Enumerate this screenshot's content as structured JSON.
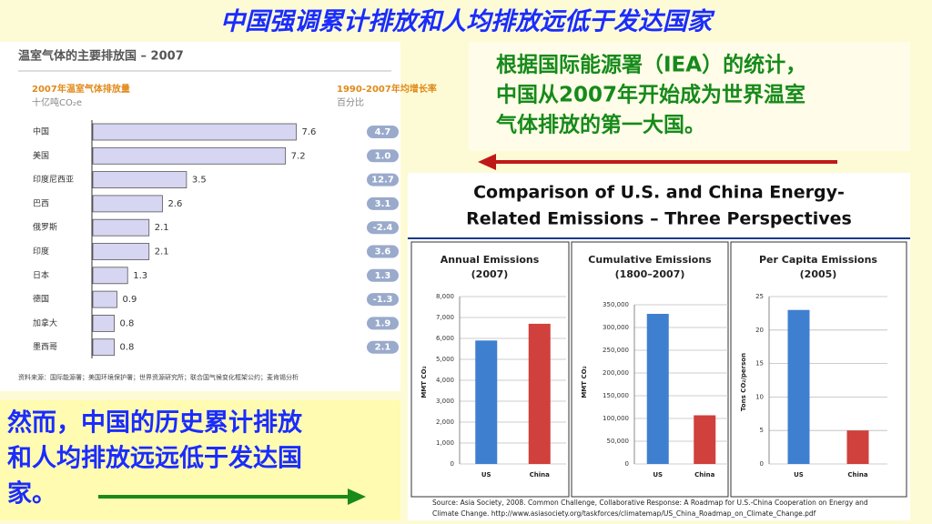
{
  "title": "中国强调累计排放和人均排放远低于发达国家",
  "callout_top": [
    "根据国际能源署（IEA）的统计，",
    "中国从2007年开始成为世界温室",
    "气体排放的第一大国。"
  ],
  "callout_bottom": [
    "然而，中国的历史累计排放",
    "和人均排放远远低于发达国",
    "家。"
  ],
  "comparison": {
    "heading": [
      "Comparison of U.S. and China Energy-",
      "Related Emissions – Three Perspectives"
    ],
    "source": [
      "Source: Asia Society, 2008. Common Challenge, Collaborative Response: A Roadmap for U.S.-China Cooperation on Energy and",
      "Climate Change. http://www.asiasociety.org/taskforces/climatemap/US_China_Roadmap_on_Climate_Change.pdf"
    ]
  },
  "chart_data": [
    {
      "type": "hbar",
      "title": "温室气体的主要排放国 – 2007",
      "subtitle": "2007年温室气体排放量",
      "unit": "十亿吨CO₂e",
      "growth_title": "1990-2007年均增长率",
      "growth_unit": "百分比",
      "categories": [
        "中国",
        "美国",
        "印度尼西亚",
        "巴西",
        "俄罗斯",
        "印度",
        "日本",
        "德国",
        "加拿大",
        "墨西哥"
      ],
      "values": [
        7.6,
        7.2,
        3.5,
        2.6,
        2.1,
        2.1,
        1.3,
        0.9,
        0.8,
        0.8
      ],
      "color": "#d6d6f2",
      "growth": {
        "values": [
          4.7,
          1,
          12.7,
          3.1,
          -2.4,
          3.6,
          1.3,
          -1.3,
          1.9,
          2.1
        ],
        "value_labels": [
          "4.7",
          "1.0",
          "12.7",
          "3.1",
          "-2.4",
          "3.6",
          "1.3",
          "-1.3",
          "1.9",
          "2.1"
        ],
        "color": "#9aaacb"
      },
      "source": "资料来源：国际能源署；美国环境保护署；世界资源研究所；联合国气候变化框架公约；麦肯锡分析"
    },
    {
      "type": "bar",
      "title": [
        "Annual Emissions",
        "(2007)"
      ],
      "ylabel": "MMT CO₂",
      "categories": [
        "US",
        "China"
      ],
      "values": [
        5900,
        6700
      ],
      "colors": [
        "#3f7fd0",
        "#d0403c"
      ],
      "ylim": [
        0,
        8000
      ],
      "yticks": [
        0,
        {
          "value": 1000,
          "label": "1,000"
        },
        {
          "value": 2000,
          "label": "2,000"
        },
        {
          "value": 3000,
          "label": "3,000"
        },
        {
          "value": 4000,
          "label": "4,000"
        },
        {
          "value": 5000,
          "label": "5,000"
        },
        {
          "value": 6000,
          "label": "6,000"
        },
        {
          "value": 7000,
          "label": "7,000"
        },
        {
          "value": 8000,
          "label": "8,000"
        }
      ],
      "grid": true
    },
    {
      "type": "bar",
      "title": [
        "Cumulative Emissions",
        "(1800–2007)"
      ],
      "ylabel": "MMT CO₂",
      "categories": [
        "US",
        "China"
      ],
      "values": [
        330000,
        107000
      ],
      "colors": [
        "#3f7fd0",
        "#d0403c"
      ],
      "ylim": [
        0,
        350000
      ],
      "yticks": [
        0,
        {
          "value": 50000,
          "label": "50,000"
        },
        {
          "value": 100000,
          "label": "100,000"
        },
        {
          "value": 150000,
          "label": "150,000"
        },
        {
          "value": 200000,
          "label": "200,000"
        },
        {
          "value": 250000,
          "label": "250,000"
        },
        {
          "value": 300000,
          "label": "300,000"
        },
        {
          "value": 350000,
          "label": "350,000"
        }
      ],
      "grid": true
    },
    {
      "type": "bar",
      "title": [
        "Per Capita Emissions",
        "(2005)"
      ],
      "ylabel": "Tons CO₂/person",
      "categories": [
        "US",
        "China"
      ],
      "values": [
        23,
        5
      ],
      "colors": [
        "#3f7fd0",
        "#d0403c"
      ],
      "ylim": [
        0,
        25
      ],
      "yticks": [
        0,
        5,
        10,
        15,
        20,
        25
      ],
      "grid": true
    }
  ]
}
